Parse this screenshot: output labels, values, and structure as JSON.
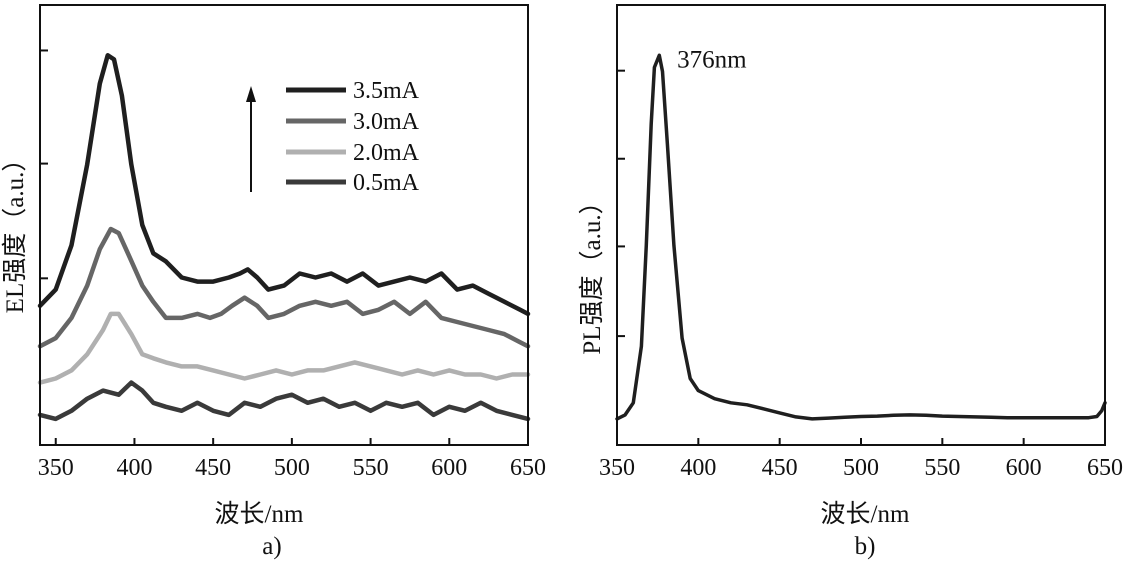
{
  "chart_data": [
    {
      "panel": "a)",
      "type": "line",
      "xlabel": "波长/nm",
      "ylabel": "EL强度（a.u.）",
      "xlim": [
        340,
        650
      ],
      "ylim": [
        0,
        1.0
      ],
      "xticks": [
        350,
        400,
        450,
        500,
        550,
        600,
        650
      ],
      "ytick_values": [
        0.368,
        0.652,
        0.932
      ],
      "ytick_labels": false,
      "legend_position": "top-right",
      "arrow": "up",
      "series": [
        {
          "name": "3.5mA",
          "color": "#1f1f1f",
          "points": [
            [
              340,
              0.3
            ],
            [
              350,
              0.34
            ],
            [
              360,
              0.45
            ],
            [
              370,
              0.65
            ],
            [
              378,
              0.85
            ],
            [
              383,
              0.92
            ],
            [
              387,
              0.91
            ],
            [
              392,
              0.82
            ],
            [
              398,
              0.65
            ],
            [
              405,
              0.5
            ],
            [
              412,
              0.43
            ],
            [
              420,
              0.41
            ],
            [
              430,
              0.37
            ],
            [
              440,
              0.36
            ],
            [
              450,
              0.36
            ],
            [
              460,
              0.37
            ],
            [
              467,
              0.38
            ],
            [
              472,
              0.39
            ],
            [
              478,
              0.37
            ],
            [
              485,
              0.34
            ],
            [
              495,
              0.35
            ],
            [
              505,
              0.38
            ],
            [
              515,
              0.37
            ],
            [
              525,
              0.38
            ],
            [
              535,
              0.36
            ],
            [
              545,
              0.38
            ],
            [
              555,
              0.35
            ],
            [
              565,
              0.36
            ],
            [
              575,
              0.37
            ],
            [
              585,
              0.36
            ],
            [
              595,
              0.38
            ],
            [
              605,
              0.34
            ],
            [
              615,
              0.35
            ],
            [
              625,
              0.33
            ],
            [
              635,
              0.31
            ],
            [
              645,
              0.29
            ],
            [
              650,
              0.28
            ]
          ]
        },
        {
          "name": "3.0mA",
          "color": "#666666",
          "points": [
            [
              340,
              0.2
            ],
            [
              350,
              0.22
            ],
            [
              360,
              0.27
            ],
            [
              370,
              0.35
            ],
            [
              378,
              0.44
            ],
            [
              385,
              0.49
            ],
            [
              390,
              0.48
            ],
            [
              397,
              0.42
            ],
            [
              405,
              0.35
            ],
            [
              412,
              0.31
            ],
            [
              420,
              0.27
            ],
            [
              430,
              0.27
            ],
            [
              440,
              0.28
            ],
            [
              448,
              0.27
            ],
            [
              455,
              0.28
            ],
            [
              462,
              0.3
            ],
            [
              470,
              0.32
            ],
            [
              478,
              0.3
            ],
            [
              485,
              0.27
            ],
            [
              495,
              0.28
            ],
            [
              505,
              0.3
            ],
            [
              515,
              0.31
            ],
            [
              525,
              0.3
            ],
            [
              535,
              0.31
            ],
            [
              545,
              0.28
            ],
            [
              555,
              0.29
            ],
            [
              565,
              0.31
            ],
            [
              575,
              0.28
            ],
            [
              585,
              0.31
            ],
            [
              595,
              0.27
            ],
            [
              605,
              0.26
            ],
            [
              615,
              0.25
            ],
            [
              625,
              0.24
            ],
            [
              635,
              0.23
            ],
            [
              645,
              0.21
            ],
            [
              650,
              0.2
            ]
          ]
        },
        {
          "name": "2.0mA",
          "color": "#b0b0b0",
          "points": [
            [
              340,
              0.11
            ],
            [
              350,
              0.12
            ],
            [
              360,
              0.14
            ],
            [
              370,
              0.18
            ],
            [
              380,
              0.24
            ],
            [
              385,
              0.28
            ],
            [
              390,
              0.28
            ],
            [
              398,
              0.23
            ],
            [
              405,
              0.18
            ],
            [
              412,
              0.17
            ],
            [
              420,
              0.16
            ],
            [
              430,
              0.15
            ],
            [
              440,
              0.15
            ],
            [
              450,
              0.14
            ],
            [
              460,
              0.13
            ],
            [
              470,
              0.12
            ],
            [
              480,
              0.13
            ],
            [
              490,
              0.14
            ],
            [
              500,
              0.13
            ],
            [
              510,
              0.14
            ],
            [
              520,
              0.14
            ],
            [
              530,
              0.15
            ],
            [
              540,
              0.16
            ],
            [
              550,
              0.15
            ],
            [
              560,
              0.14
            ],
            [
              570,
              0.13
            ],
            [
              580,
              0.14
            ],
            [
              590,
              0.13
            ],
            [
              600,
              0.14
            ],
            [
              610,
              0.13
            ],
            [
              620,
              0.13
            ],
            [
              630,
              0.12
            ],
            [
              640,
              0.13
            ],
            [
              650,
              0.13
            ]
          ]
        },
        {
          "name": "0.5mA",
          "color": "#3a3a3a",
          "points": [
            [
              340,
              0.03
            ],
            [
              350,
              0.02
            ],
            [
              360,
              0.04
            ],
            [
              370,
              0.07
            ],
            [
              380,
              0.09
            ],
            [
              390,
              0.08
            ],
            [
              398,
              0.11
            ],
            [
              405,
              0.09
            ],
            [
              412,
              0.06
            ],
            [
              420,
              0.05
            ],
            [
              430,
              0.04
            ],
            [
              440,
              0.06
            ],
            [
              450,
              0.04
            ],
            [
              460,
              0.03
            ],
            [
              470,
              0.06
            ],
            [
              480,
              0.05
            ],
            [
              490,
              0.07
            ],
            [
              500,
              0.08
            ],
            [
              510,
              0.06
            ],
            [
              520,
              0.07
            ],
            [
              530,
              0.05
            ],
            [
              540,
              0.06
            ],
            [
              550,
              0.04
            ],
            [
              560,
              0.06
            ],
            [
              570,
              0.05
            ],
            [
              580,
              0.06
            ],
            [
              590,
              0.03
            ],
            [
              600,
              0.05
            ],
            [
              610,
              0.04
            ],
            [
              620,
              0.06
            ],
            [
              630,
              0.04
            ],
            [
              640,
              0.03
            ],
            [
              650,
              0.02
            ]
          ]
        }
      ]
    },
    {
      "panel": "b)",
      "type": "line",
      "xlabel": "波长/nm",
      "ylabel": "PL强度（a.u.）",
      "xlim": [
        350,
        650
      ],
      "ylim": [
        0,
        1.0
      ],
      "xticks": [
        350,
        400,
        450,
        500,
        550,
        600,
        650
      ],
      "ytick_values": [
        0.225,
        0.447,
        0.664,
        0.882
      ],
      "ytick_labels": false,
      "annotation": {
        "text": "376nm",
        "x": 387,
        "y": 0.89
      },
      "series": [
        {
          "name": "PL",
          "color": "#1f1f1f",
          "points": [
            [
              350,
              0.02
            ],
            [
              355,
              0.03
            ],
            [
              360,
              0.06
            ],
            [
              365,
              0.2
            ],
            [
              368,
              0.45
            ],
            [
              371,
              0.75
            ],
            [
              373,
              0.89
            ],
            [
              376,
              0.92
            ],
            [
              378,
              0.88
            ],
            [
              381,
              0.7
            ],
            [
              385,
              0.45
            ],
            [
              390,
              0.22
            ],
            [
              395,
              0.12
            ],
            [
              400,
              0.09
            ],
            [
              410,
              0.07
            ],
            [
              420,
              0.06
            ],
            [
              430,
              0.055
            ],
            [
              440,
              0.045
            ],
            [
              450,
              0.035
            ],
            [
              460,
              0.025
            ],
            [
              470,
              0.02
            ],
            [
              480,
              0.022
            ],
            [
              490,
              0.024
            ],
            [
              500,
              0.026
            ],
            [
              510,
              0.027
            ],
            [
              520,
              0.029
            ],
            [
              530,
              0.03
            ],
            [
              540,
              0.029
            ],
            [
              550,
              0.027
            ],
            [
              560,
              0.026
            ],
            [
              570,
              0.025
            ],
            [
              580,
              0.024
            ],
            [
              590,
              0.023
            ],
            [
              600,
              0.023
            ],
            [
              610,
              0.023
            ],
            [
              620,
              0.023
            ],
            [
              630,
              0.023
            ],
            [
              640,
              0.023
            ],
            [
              645,
              0.026
            ],
            [
              648,
              0.04
            ],
            [
              650,
              0.06
            ]
          ]
        }
      ]
    }
  ]
}
